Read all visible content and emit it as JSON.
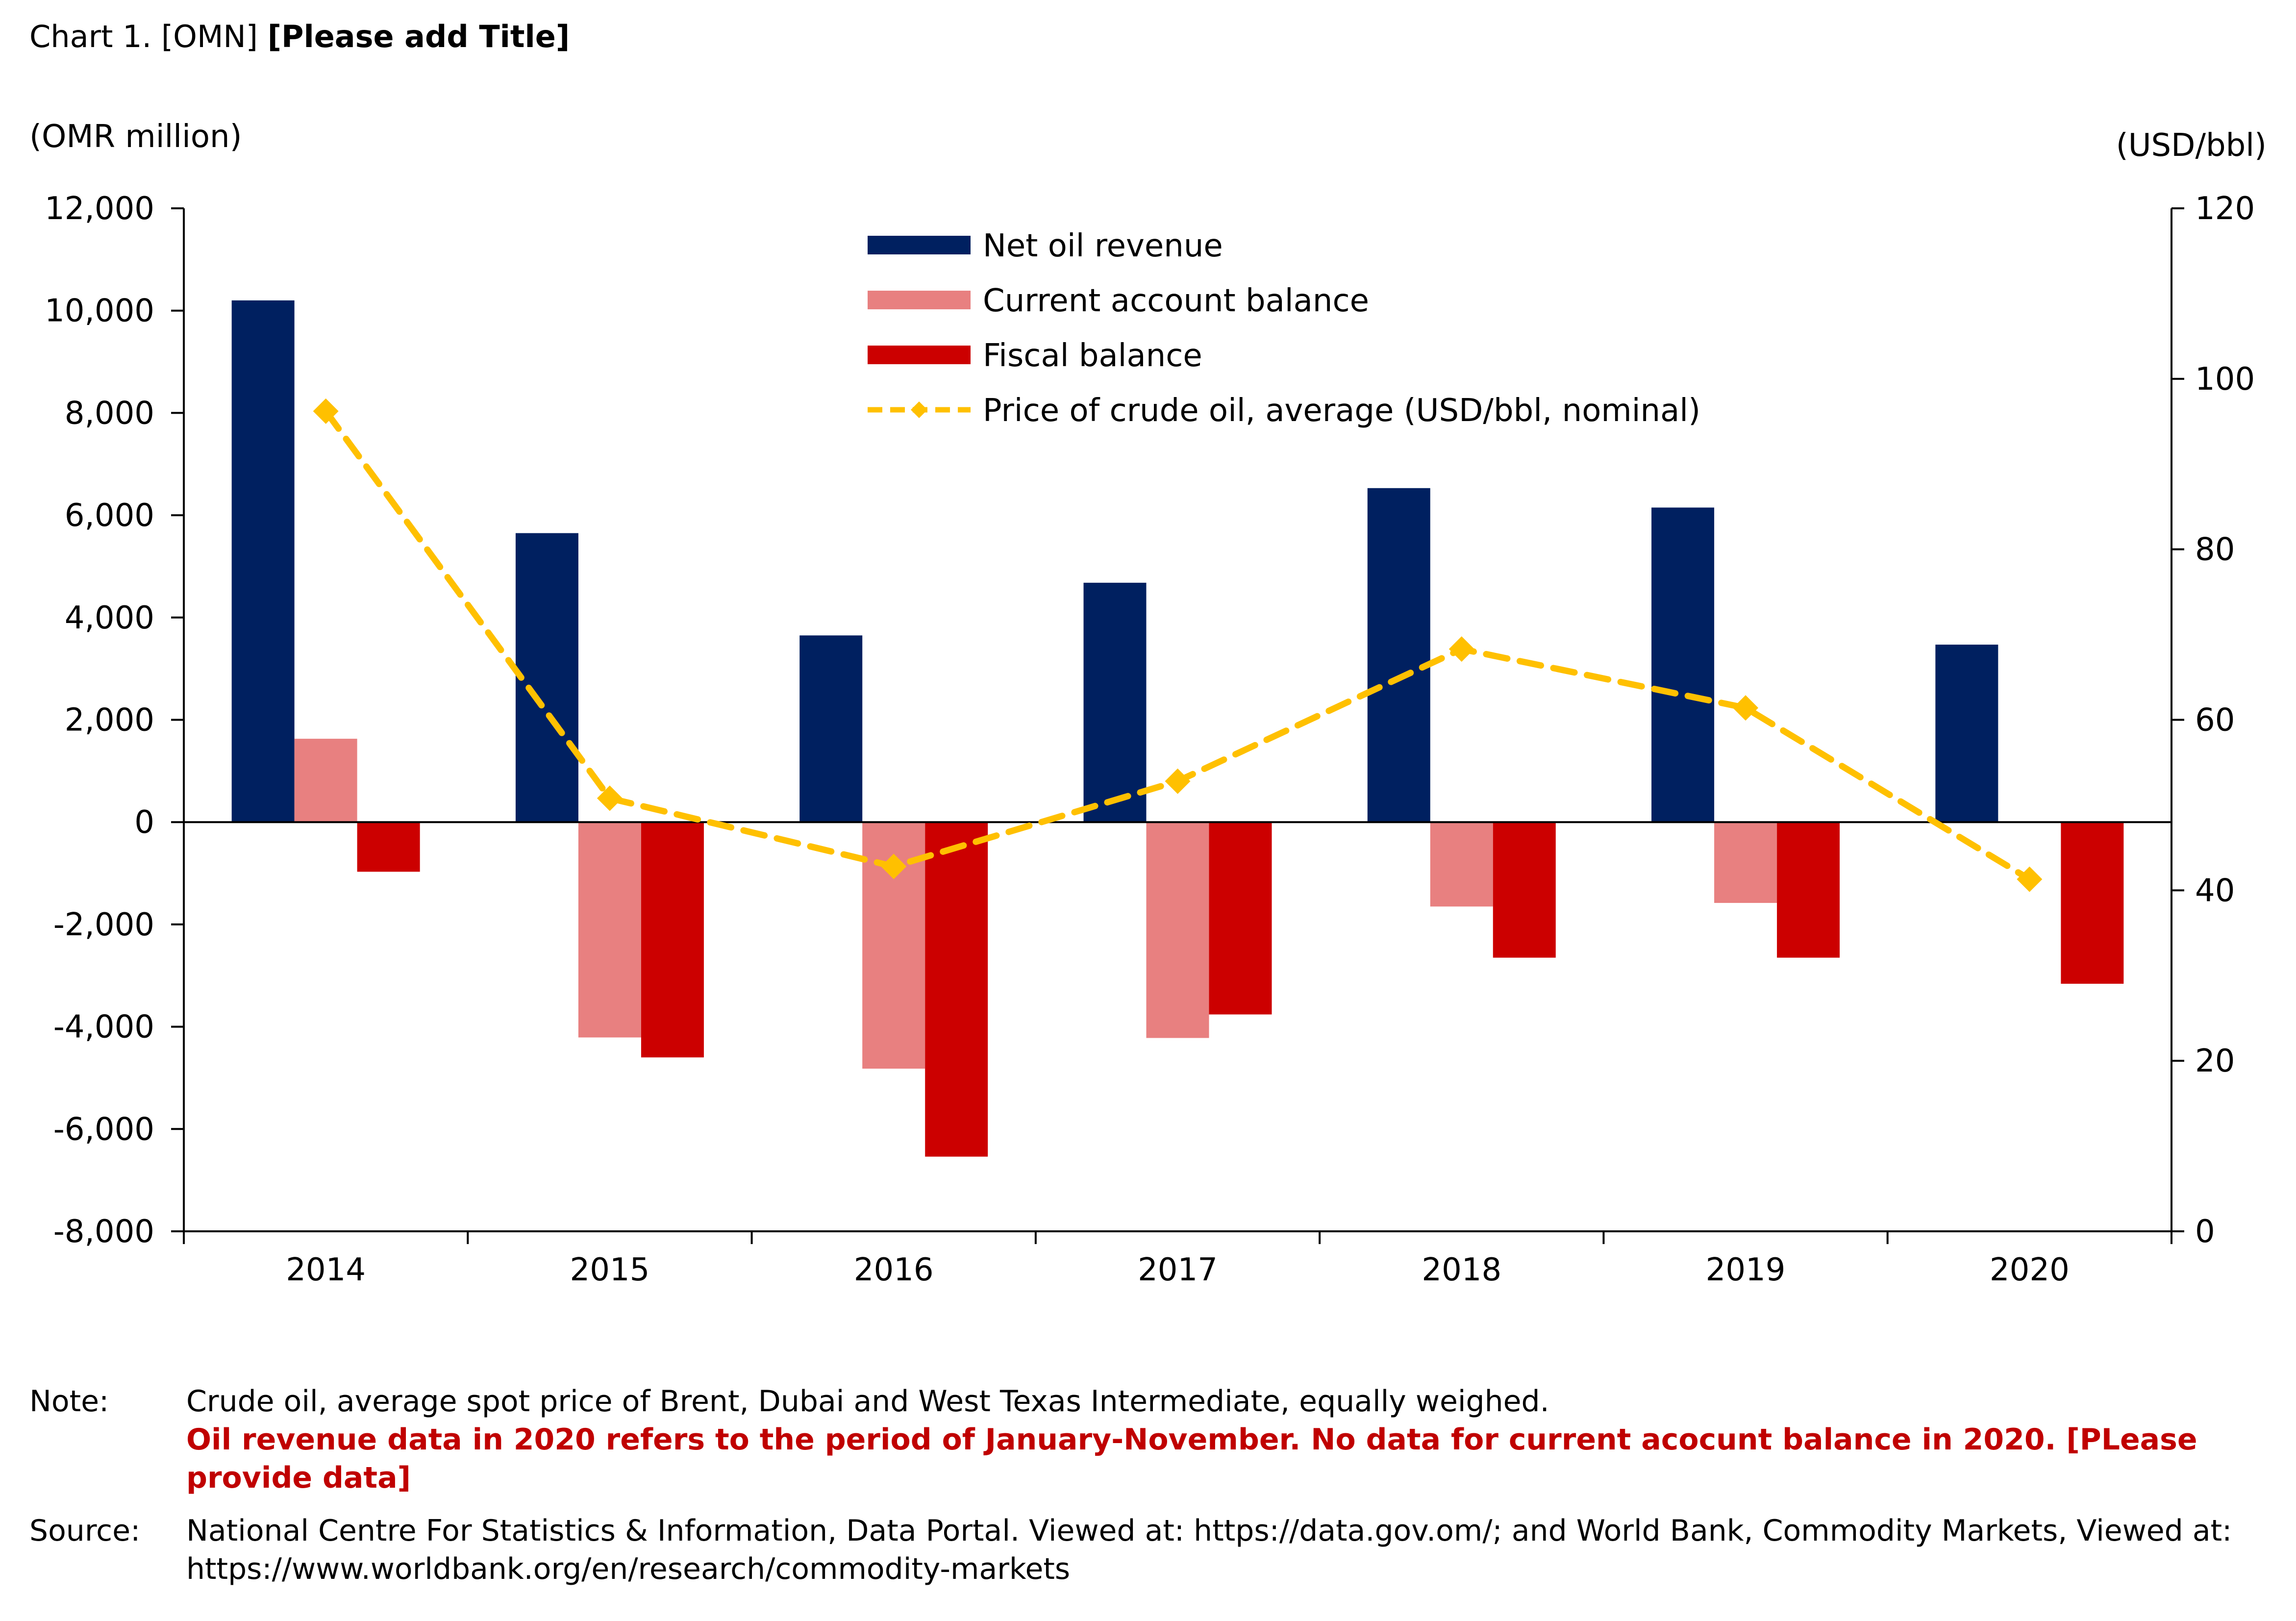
{
  "header": {
    "prefix": "Chart 1. [OMN]",
    "title": "[Please add Title]"
  },
  "chart_data": {
    "type": "bar",
    "categories": [
      "2014",
      "2015",
      "2016",
      "2017",
      "2018",
      "2019",
      "2020"
    ],
    "y_left": {
      "label": "(OMR million)",
      "range": [
        -8000,
        12000
      ],
      "ticks": [
        -8000,
        -6000,
        -4000,
        -2000,
        0,
        2000,
        4000,
        6000,
        8000,
        10000,
        12000
      ],
      "tick_labels": [
        "-8,000",
        "-6,000",
        "-4,000",
        "-2,000",
        "0",
        "2,000",
        "4,000",
        "6,000",
        "8,000",
        "10,000",
        "12,000"
      ]
    },
    "y_right": {
      "label": "(USD/bbl)",
      "range": [
        0,
        120
      ],
      "ticks": [
        0,
        20,
        40,
        60,
        80,
        100,
        120
      ],
      "tick_labels": [
        "0",
        "20",
        "40",
        "60",
        "80",
        "100",
        "120"
      ]
    },
    "series": [
      {
        "name": "Net oil revenue",
        "kind": "bar",
        "axis": "left",
        "color": "#002060",
        "values": [
          10200,
          5650,
          3650,
          4680,
          6530,
          6150,
          3470
        ]
      },
      {
        "name": "Current account balance",
        "kind": "bar",
        "axis": "left",
        "color": "#e88080",
        "values": [
          1630,
          -4210,
          -4820,
          -4220,
          -1650,
          -1580,
          null
        ]
      },
      {
        "name": "Fiscal balance",
        "kind": "bar",
        "axis": "left",
        "color": "#cc0000",
        "values": [
          -970,
          -4600,
          -6540,
          -3760,
          -2650,
          -2650,
          -3160
        ]
      },
      {
        "name": "Price of crude oil, average (USD/bbl, nominal)",
        "kind": "line",
        "axis": "right",
        "color": "#ffc000",
        "style": "dashed",
        "marker": "diamond",
        "values": [
          96.2,
          50.8,
          42.8,
          52.8,
          68.3,
          61.4,
          41.3
        ]
      }
    ],
    "legend_position": "top-center",
    "grid": false
  },
  "notes": {
    "note_label": "Note:",
    "note_text": "Crude oil, average spot price of Brent, Dubai and West Texas Intermediate, equally weighed.",
    "note_red": "Oil revenue data in 2020 refers to the period of January-November. No data for current acocunt balance in 2020. [PLease provide data]",
    "source_label": "Source:",
    "source_text": "National Centre For Statistics & Information, Data Portal. Viewed at: https://data.gov.om/; and World Bank, Commodity Markets, Viewed at: https://www.worldbank.org/en/research/commodity-markets"
  }
}
